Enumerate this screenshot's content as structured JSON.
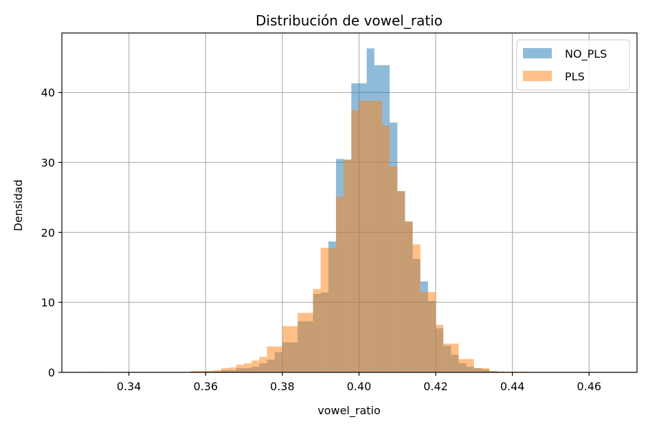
{
  "chart_data": {
    "type": "histogram",
    "title": "Distribución de vowel_ratio",
    "xlabel": "vowel_ratio",
    "ylabel": "Densidad",
    "xlim": [
      0.3225,
      0.4725
    ],
    "ylim": [
      0,
      48.5
    ],
    "xticks": [
      "0.34",
      "0.36",
      "0.38",
      "0.40",
      "0.42",
      "0.44",
      "0.46"
    ],
    "xtick_values": [
      0.34,
      0.36,
      0.38,
      0.4,
      0.42,
      0.44,
      0.46
    ],
    "yticks": [
      "0",
      "10",
      "20",
      "30",
      "40"
    ],
    "ytick_values": [
      0,
      10,
      20,
      30,
      40
    ],
    "grid": true,
    "legend_position": "top-right",
    "series": [
      {
        "name": "NO_PLS",
        "color": "#1f77b4",
        "opacity": 0.5,
        "bins": [
          [
            0.33,
            0.334,
            0.05
          ],
          [
            0.356,
            0.36,
            0.1
          ],
          [
            0.36,
            0.364,
            0.15
          ],
          [
            0.364,
            0.368,
            0.3
          ],
          [
            0.368,
            0.372,
            0.6
          ],
          [
            0.372,
            0.374,
            0.8
          ],
          [
            0.374,
            0.376,
            1.3
          ],
          [
            0.376,
            0.378,
            1.8
          ],
          [
            0.378,
            0.38,
            2.9
          ],
          [
            0.38,
            0.384,
            4.3
          ],
          [
            0.384,
            0.388,
            7.3
          ],
          [
            0.388,
            0.39,
            11.2
          ],
          [
            0.39,
            0.392,
            11.4
          ],
          [
            0.392,
            0.394,
            18.7
          ],
          [
            0.394,
            0.396,
            30.5
          ],
          [
            0.396,
            0.398,
            30.4
          ],
          [
            0.398,
            0.4,
            41.3
          ],
          [
            0.4,
            0.402,
            41.3
          ],
          [
            0.402,
            0.404,
            46.3
          ],
          [
            0.404,
            0.406,
            43.9
          ],
          [
            0.406,
            0.408,
            43.9
          ],
          [
            0.408,
            0.41,
            35.7
          ],
          [
            0.41,
            0.412,
            25.9
          ],
          [
            0.412,
            0.414,
            21.5
          ],
          [
            0.414,
            0.416,
            16.2
          ],
          [
            0.416,
            0.418,
            13.0
          ],
          [
            0.418,
            0.42,
            10.2
          ],
          [
            0.42,
            0.422,
            6.3
          ],
          [
            0.422,
            0.424,
            3.8
          ],
          [
            0.424,
            0.426,
            2.5
          ],
          [
            0.426,
            0.428,
            1.3
          ],
          [
            0.428,
            0.43,
            0.8
          ],
          [
            0.43,
            0.432,
            0.6
          ],
          [
            0.432,
            0.434,
            0.4
          ],
          [
            0.434,
            0.436,
            0.15
          ],
          [
            0.436,
            0.438,
            0.1
          ]
        ]
      },
      {
        "name": "PLS",
        "color": "#ff7f0e",
        "opacity": 0.5,
        "bins": [
          [
            0.356,
            0.36,
            0.2
          ],
          [
            0.36,
            0.362,
            0.2
          ],
          [
            0.362,
            0.364,
            0.3
          ],
          [
            0.364,
            0.366,
            0.6
          ],
          [
            0.366,
            0.368,
            0.7
          ],
          [
            0.368,
            0.37,
            1.1
          ],
          [
            0.37,
            0.372,
            1.3
          ],
          [
            0.372,
            0.374,
            1.7
          ],
          [
            0.374,
            0.376,
            2.2
          ],
          [
            0.376,
            0.378,
            3.7
          ],
          [
            0.378,
            0.38,
            3.7
          ],
          [
            0.38,
            0.382,
            6.6
          ],
          [
            0.382,
            0.384,
            6.6
          ],
          [
            0.384,
            0.386,
            8.5
          ],
          [
            0.386,
            0.388,
            8.5
          ],
          [
            0.388,
            0.39,
            11.9
          ],
          [
            0.39,
            0.392,
            17.8
          ],
          [
            0.392,
            0.394,
            17.8
          ],
          [
            0.394,
            0.396,
            25.1
          ],
          [
            0.396,
            0.398,
            30.4
          ],
          [
            0.398,
            0.4,
            37.5
          ],
          [
            0.4,
            0.402,
            38.8
          ],
          [
            0.402,
            0.404,
            38.8
          ],
          [
            0.404,
            0.406,
            38.8
          ],
          [
            0.406,
            0.408,
            35.3
          ],
          [
            0.408,
            0.41,
            29.5
          ],
          [
            0.41,
            0.412,
            25.9
          ],
          [
            0.412,
            0.414,
            21.6
          ],
          [
            0.414,
            0.416,
            18.3
          ],
          [
            0.416,
            0.418,
            11.5
          ],
          [
            0.418,
            0.42,
            11.5
          ],
          [
            0.42,
            0.422,
            6.8
          ],
          [
            0.422,
            0.424,
            4.1
          ],
          [
            0.424,
            0.426,
            4.1
          ],
          [
            0.426,
            0.428,
            1.9
          ],
          [
            0.428,
            0.43,
            1.9
          ],
          [
            0.43,
            0.432,
            0.6
          ],
          [
            0.432,
            0.434,
            0.6
          ],
          [
            0.434,
            0.436,
            0.2
          ],
          [
            0.436,
            0.44,
            0.1
          ],
          [
            0.44,
            0.444,
            0.1
          ]
        ]
      }
    ]
  }
}
